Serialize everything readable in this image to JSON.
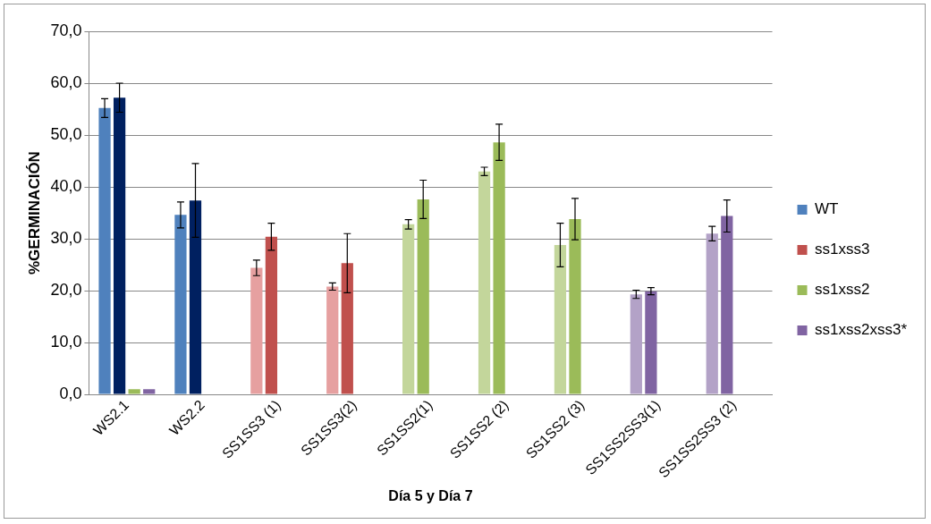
{
  "chart_data": {
    "type": "bar",
    "xlabel": "Día 5 y Día 7",
    "ylabel": "%GERMINACIÓN",
    "categories": [
      "WS2.1",
      "WS2.2",
      "SS1SS3 (1)",
      "SS1SS3(2)",
      "SS1SS2(1)",
      "SS1SS2 (2)",
      "SS1SS2 (3)",
      "SS1SS2SS3(1)",
      "SS1SS2SS3 (2)"
    ],
    "series": [
      {
        "name": "WT",
        "color": "#4f81bd",
        "colors": [
          "#4f81bd",
          "#4f81bd",
          "#e6a0a0",
          "#e6a0a0",
          "#c3d69b",
          "#c3d69b",
          "#c3d69b",
          "#b3a2c7",
          "#b3a2c7"
        ],
        "values": [
          55.2,
          34.6,
          24.4,
          20.8,
          32.8,
          43.0,
          28.8,
          19.3,
          31.0
        ],
        "errors": [
          1.8,
          2.5,
          1.5,
          0.7,
          0.9,
          0.8,
          4.2,
          0.8,
          1.4
        ]
      },
      {
        "name": "ss1xss3",
        "color": "#c0504d",
        "colors": [
          "#002060",
          "#002060",
          "#c0504d",
          "#c0504d",
          "#9bbb59",
          "#9bbb59",
          "#9bbb59",
          "#8064a2",
          "#8064a2"
        ],
        "values": [
          57.2,
          37.4,
          30.4,
          25.3,
          37.6,
          48.6,
          33.8,
          19.9,
          34.4
        ],
        "errors": [
          2.8,
          7.1,
          2.6,
          5.7,
          3.7,
          3.5,
          4.0,
          0.7,
          3.1
        ]
      },
      {
        "name": "ss1xss2",
        "color": "#9bbb59",
        "values": [
          1.0,
          null,
          null,
          null,
          null,
          null,
          null,
          null,
          null
        ]
      },
      {
        "name": "ss1xss2xss3*",
        "color": "#8064a2",
        "values": [
          1.0,
          null,
          null,
          null,
          null,
          null,
          null,
          null,
          null
        ]
      }
    ],
    "ylim": [
      0,
      70
    ],
    "yticks": [
      {
        "value": 0,
        "label": "0,0"
      },
      {
        "value": 10,
        "label": "10,0"
      },
      {
        "value": 20,
        "label": "20,0"
      },
      {
        "value": 30,
        "label": "30,0"
      },
      {
        "value": 40,
        "label": "40,0"
      },
      {
        "value": 50,
        "label": "50,0"
      },
      {
        "value": 60,
        "label": "60,0"
      },
      {
        "value": 70,
        "label": "70,0"
      }
    ],
    "grid": "y",
    "legend": "right"
  }
}
